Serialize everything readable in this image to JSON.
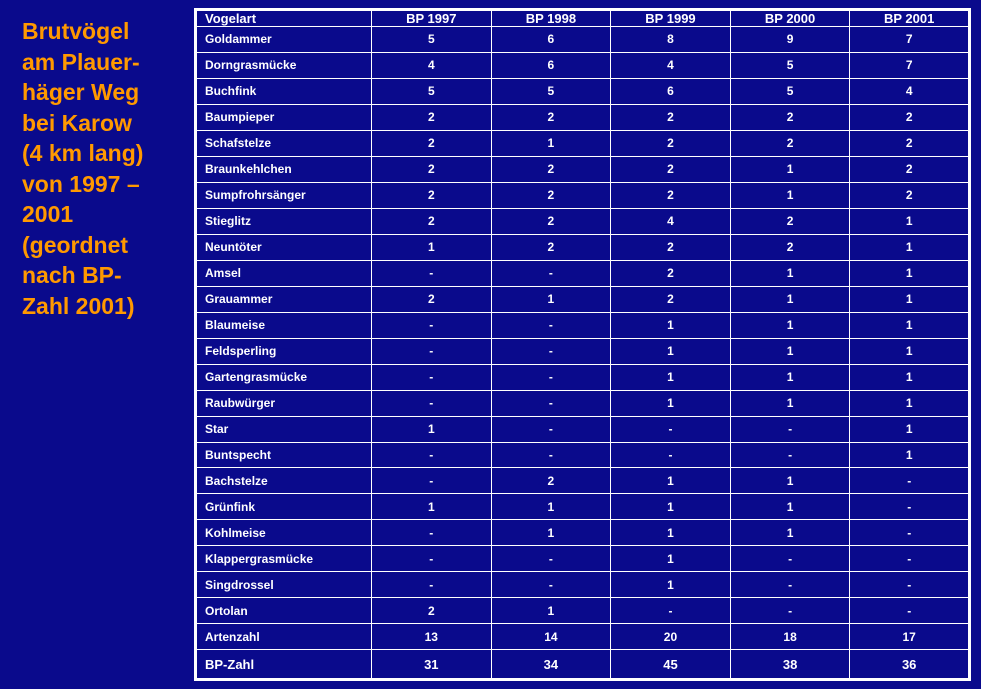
{
  "title": "Brutvögel am Plauer-häger Weg bei Karow (4 km lang) von 1997 – 2001 (geordnet nach BP-Zahl 2001)",
  "title_lines": [
    "Brutvögel",
    "am Plauer-",
    "häger Weg",
    "bei Karow",
    "(4 km lang)",
    "von 1997 –",
    "2001",
    "(geordnet",
    "nach BP-",
    "Zahl 2001)"
  ],
  "colors": {
    "background": "#0a0a8c",
    "title": "#ff9900",
    "table_text": "#ffffff",
    "grid": "#ffffff"
  },
  "table": {
    "headers": [
      "Vogelart",
      "BP 1997",
      "BP 1998",
      "BP 1999",
      "BP 2000",
      "BP 2001"
    ],
    "rows": [
      [
        "Goldammer",
        "5",
        "6",
        "8",
        "9",
        "7"
      ],
      [
        "Dorngrasmücke",
        "4",
        "6",
        "4",
        "5",
        "7"
      ],
      [
        "Buchfink",
        "5",
        "5",
        "6",
        "5",
        "4"
      ],
      [
        "Baumpieper",
        "2",
        "2",
        "2",
        "2",
        "2"
      ],
      [
        "Schafstelze",
        "2",
        "1",
        "2",
        "2",
        "2"
      ],
      [
        "Braunkehlchen",
        "2",
        "2",
        "2",
        "1",
        "2"
      ],
      [
        "Sumpfrohrsänger",
        "2",
        "2",
        "2",
        "1",
        "2"
      ],
      [
        "Stieglitz",
        "2",
        "2",
        "4",
        "2",
        "1"
      ],
      [
        "Neuntöter",
        "1",
        "2",
        "2",
        "2",
        "1"
      ],
      [
        "Amsel",
        "-",
        "-",
        "2",
        "1",
        "1"
      ],
      [
        "Grauammer",
        "2",
        "1",
        "2",
        "1",
        "1"
      ],
      [
        "Blaumeise",
        "-",
        "-",
        "1",
        "1",
        "1"
      ],
      [
        "Feldsperling",
        "-",
        "-",
        "1",
        "1",
        "1"
      ],
      [
        "Gartengrasmücke",
        "-",
        "-",
        "1",
        "1",
        "1"
      ],
      [
        "Raubwürger",
        "-",
        "-",
        "1",
        "1",
        "1"
      ],
      [
        "Star",
        "1",
        "-",
        "-",
        "-",
        "1"
      ],
      [
        "Buntspecht",
        "-",
        "-",
        "-",
        "-",
        "1"
      ],
      [
        "Bachstelze",
        "-",
        "2",
        "1",
        "1",
        "-"
      ],
      [
        "Grünfink",
        "1",
        "1",
        "1",
        "1",
        "-"
      ],
      [
        "Kohlmeise",
        "-",
        "1",
        "1",
        "1",
        "-"
      ],
      [
        "Klappergrasmücke",
        "-",
        "-",
        "1",
        "-",
        "-"
      ],
      [
        "Singdrossel",
        "-",
        "-",
        "1",
        "-",
        "-"
      ],
      [
        "Ortolan",
        "2",
        "1",
        "-",
        "-",
        "-"
      ]
    ],
    "artenzahl": [
      "Artenzahl",
      "13",
      "14",
      "20",
      "18",
      "17"
    ],
    "bp_zahl": [
      "BP-Zahl",
      "31",
      "34",
      "45",
      "38",
      "36"
    ]
  }
}
